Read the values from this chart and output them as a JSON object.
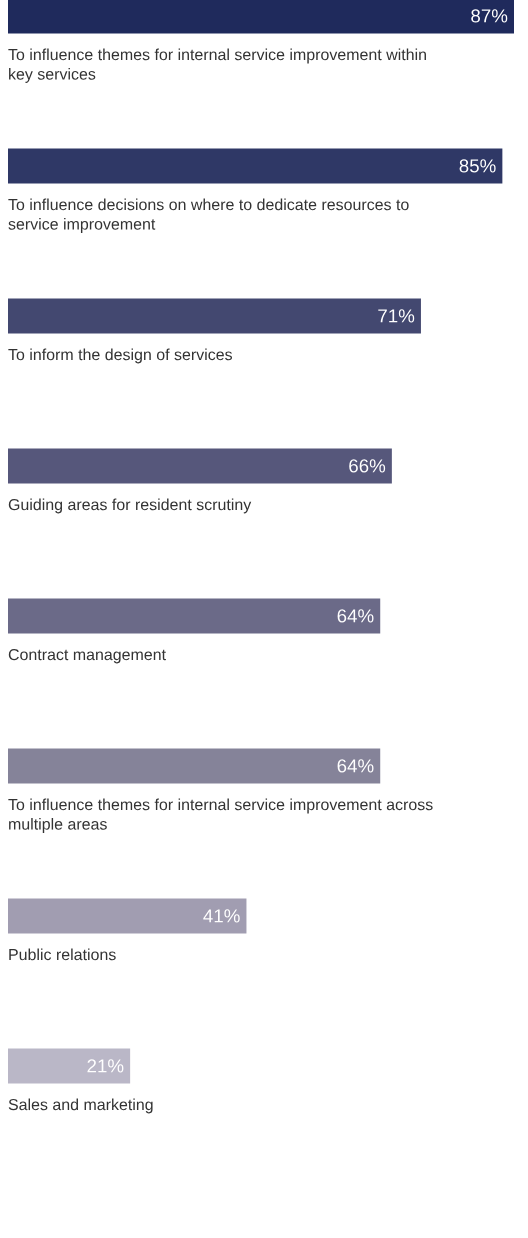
{
  "chart_data": {
    "type": "bar",
    "orientation": "horizontal",
    "categories": [
      "To influence themes for internal service improvement within key services",
      "To influence decisions on where to dedicate resources to service improvement",
      "To inform the design of services",
      "Guiding areas for resident scrutiny",
      "Contract management",
      "To influence themes for internal service improvement across multiple areas",
      "Public relations",
      "Sales and marketing"
    ],
    "values": [
      87,
      85,
      71,
      66,
      64,
      64,
      41,
      21
    ],
    "value_labels": [
      "87%",
      "85%",
      "71%",
      "66%",
      "64%",
      "64%",
      "41%",
      "21%"
    ],
    "colors": [
      "#1f2a5c",
      "#2f3866",
      "#434870",
      "#56577b",
      "#6b6a88",
      "#858399",
      "#a19db1",
      "#bab7c7"
    ]
  }
}
